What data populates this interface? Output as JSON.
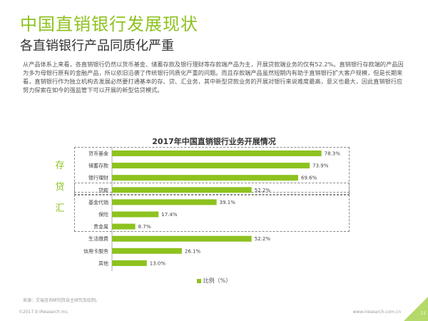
{
  "page": {
    "title": "中国直销银行发展现状",
    "subtitle": "各直销银行产品同质化严重",
    "intro": "从产品体系上来看，各直销银行仍然以货币基金、储蓄存款及银行理财等存款端产品为主，开展贷款端业务的仅有52.2%。直销银行存款端的产品因为多为母银行原有的金融产品，所以依旧沿袭了传统银行同质化严重的问题。而且存款端产品虽然短期内有助于直销银行扩大客户规模，但是长期来看，直销银行作为独立机构去发展必然要打通基本的存、贷、汇业务，其中新型贷款业务的开展对银行来说难度最高，意义也最大，因此直销银行应努力探索在如今的强监管下可以开展的新型信贷模式。",
    "source": "来源：艾瑞咨询研究院自主研究及绘制。",
    "footer_left": "©2017.9 iResearch Inc.",
    "footer_right": "www.iresearch.com.cn",
    "page_number": "11"
  },
  "colors": {
    "accent": "#8dc21f",
    "bar": "#8dc21f",
    "corner": "#b5d96a"
  },
  "chart_data": {
    "type": "bar",
    "orientation": "horizontal",
    "title": "2017年中国直销银行业务开展情况",
    "categories": [
      "货币基金",
      "储蓄存款",
      "银行理财",
      "贷款",
      "基金代销",
      "保险",
      "贵金属",
      "生活缴费",
      "信用卡服务",
      "其他"
    ],
    "values": [
      78.3,
      73.9,
      69.6,
      52.2,
      39.1,
      17.4,
      8.7,
      52.2,
      26.1,
      13.0
    ],
    "value_labels": [
      "78.3%",
      "73.9%",
      "69.6%",
      "52.2%",
      "39.1%",
      "17.4%",
      "8.7%",
      "52.2%",
      "26.1%",
      "13.0%"
    ],
    "group_labels": [
      "存",
      "贷",
      "汇"
    ],
    "xlim": [
      0,
      100
    ],
    "legend": [
      {
        "name": "比例（%）"
      }
    ],
    "legend_position": "bottom",
    "grid": false
  }
}
